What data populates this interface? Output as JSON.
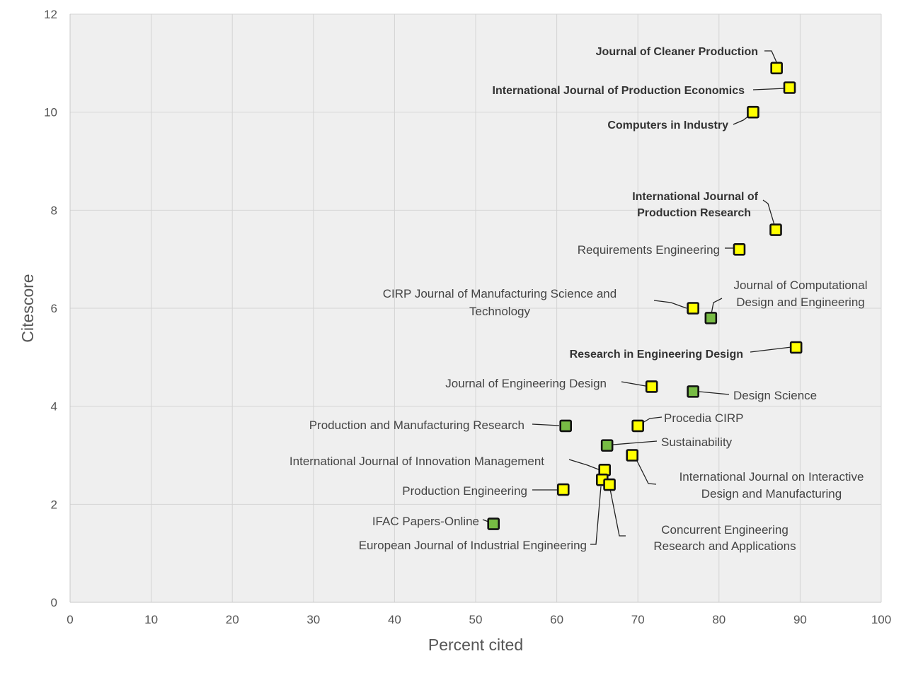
{
  "chart_data": {
    "type": "scatter",
    "title": "",
    "xlabel": "Percent cited",
    "ylabel": "Citescore",
    "xlim": [
      0,
      100
    ],
    "ylim": [
      0,
      12
    ],
    "x_ticks": [
      0,
      10,
      20,
      30,
      40,
      50,
      60,
      70,
      80,
      90,
      100
    ],
    "y_ticks": [
      0,
      2,
      4,
      6,
      8,
      10,
      12
    ],
    "grid": true,
    "legend": "none",
    "colors": {
      "plot_background": "#efefef",
      "gridline": "#ffffff",
      "yellow_marker": "#ffff00",
      "green_marker": "#77bb44",
      "marker_border": "#111111"
    },
    "points": [
      {
        "label": "Journal of Cleaner Production",
        "x": 87.1,
        "y": 10.9,
        "color": "yellow",
        "bold": true
      },
      {
        "label": "International Journal of Production Economics",
        "x": 88.7,
        "y": 10.5,
        "color": "yellow",
        "bold": true
      },
      {
        "label": "Computers in Industry",
        "x": 84.2,
        "y": 10.0,
        "color": "yellow",
        "bold": true
      },
      {
        "label": "International Journal of Production Research",
        "x": 87.0,
        "y": 7.6,
        "color": "yellow",
        "bold": true
      },
      {
        "label": "Requirements Engineering",
        "x": 82.5,
        "y": 7.2,
        "color": "yellow",
        "bold": false
      },
      {
        "label": "CIRP Journal of Manufacturing Science and Technology",
        "x": 76.8,
        "y": 6.0,
        "color": "yellow",
        "bold": false
      },
      {
        "label": "Journal of Computational Design and Engineering",
        "x": 79.0,
        "y": 5.8,
        "color": "green",
        "bold": false
      },
      {
        "label": "Research in Engineering Design",
        "x": 89.5,
        "y": 5.2,
        "color": "yellow",
        "bold": true
      },
      {
        "label": "Journal of Engineering Design",
        "x": 71.7,
        "y": 4.4,
        "color": "yellow",
        "bold": false
      },
      {
        "label": "Design Science",
        "x": 76.8,
        "y": 4.3,
        "color": "green",
        "bold": false
      },
      {
        "label": "Procedia CIRP",
        "x": 70.0,
        "y": 3.6,
        "color": "yellow",
        "bold": false
      },
      {
        "label": "Production and Manufacturing Research",
        "x": 61.1,
        "y": 3.6,
        "color": "green",
        "bold": false
      },
      {
        "label": "Sustainability",
        "x": 66.2,
        "y": 3.2,
        "color": "green",
        "bold": false
      },
      {
        "label": "International Journal on Interactive Design and Manufacturing",
        "x": 69.3,
        "y": 3.0,
        "color": "yellow",
        "bold": false
      },
      {
        "label": "International Journal of Innovation Management",
        "x": 65.9,
        "y": 2.7,
        "color": "yellow",
        "bold": false
      },
      {
        "label": "European Journal of Industrial Engineering",
        "x": 65.6,
        "y": 2.5,
        "color": "yellow",
        "bold": false
      },
      {
        "label": "Concurrent Engineering Research and Applications",
        "x": 66.5,
        "y": 2.4,
        "color": "yellow",
        "bold": false
      },
      {
        "label": "Production Engineering",
        "x": 60.8,
        "y": 2.3,
        "color": "yellow",
        "bold": false
      },
      {
        "label": "IFAC Papers-Online",
        "x": 52.2,
        "y": 1.6,
        "color": "green",
        "bold": false
      }
    ]
  }
}
